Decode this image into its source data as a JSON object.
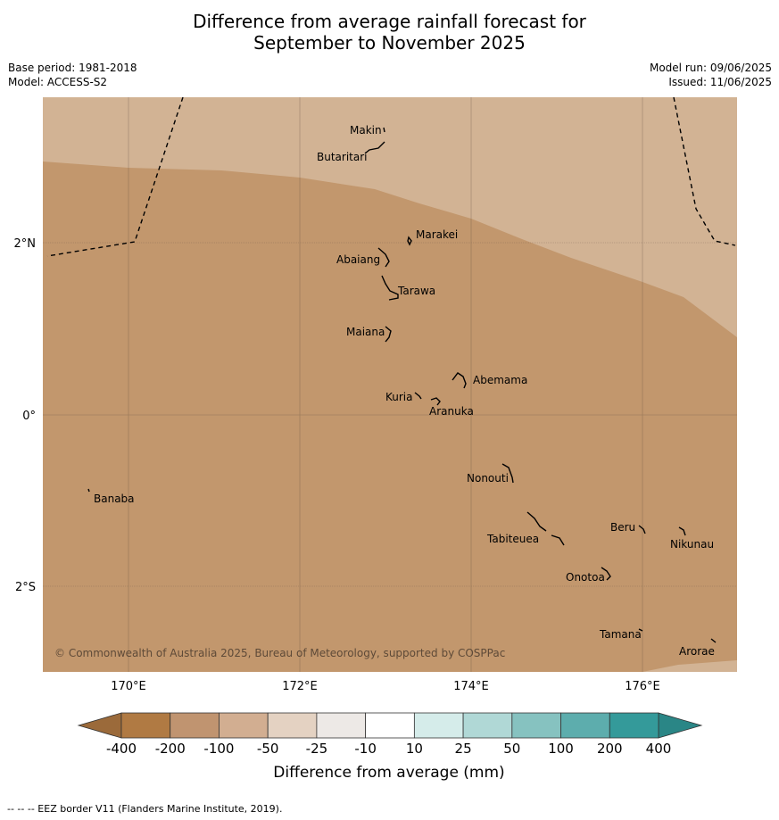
{
  "title_line1": "Difference from average rainfall forecast for",
  "title_line2": "September to November 2025",
  "base_period": "Base period: 1981-2018",
  "model": "Model: ACCESS-S2",
  "model_run": "Model run: 09/06/2025",
  "issued": "Issued: 11/06/2025",
  "copyright": "© Commonwealth of Australia 2025, Bureau of Meteorology, supported by COSPPac",
  "lon_ticks": [
    "170°E",
    "172°E",
    "174°E",
    "176°E"
  ],
  "lat_ticks": [
    "2°N",
    "0°",
    "2°S"
  ],
  "places": [
    {
      "name": "Makin"
    },
    {
      "name": "Butaritari"
    },
    {
      "name": "Marakei"
    },
    {
      "name": "Abaiang"
    },
    {
      "name": "Tarawa"
    },
    {
      "name": "Maiana"
    },
    {
      "name": "Abemama"
    },
    {
      "name": "Kuria"
    },
    {
      "name": "Aranuka"
    },
    {
      "name": "Banaba"
    },
    {
      "name": "Nonouti"
    },
    {
      "name": "Tabiteuea"
    },
    {
      "name": "Beru"
    },
    {
      "name": "Nikunau"
    },
    {
      "name": "Onotoa"
    },
    {
      "name": "Tamana"
    },
    {
      "name": "Arorae"
    }
  ],
  "colorbar": {
    "labels": [
      "-400",
      "-200",
      "-100",
      "-50",
      "-25",
      "-10",
      "10",
      "25",
      "50",
      "100",
      "200",
      "400"
    ],
    "colors": [
      "#b07a43",
      "#c09470",
      "#d2ae91",
      "#e4d2c2",
      "#ede9e6",
      "#ffffff",
      "#d5ecea",
      "#b0d8d6",
      "#86c2c0",
      "#5dadad",
      "#349a9a"
    ],
    "low_extend_color": "#9b6a3a",
    "high_extend_color": "#2a8686",
    "title": "Difference from average (mm)"
  },
  "legend_footnote": "--  --  -- EEZ border V11 (Flanders Marine Institute, 2019).",
  "map_colors": {
    "category_minus_100_to_minus_50": "#d2b394",
    "category_minus_200_to_minus_100": "#c2976d"
  }
}
